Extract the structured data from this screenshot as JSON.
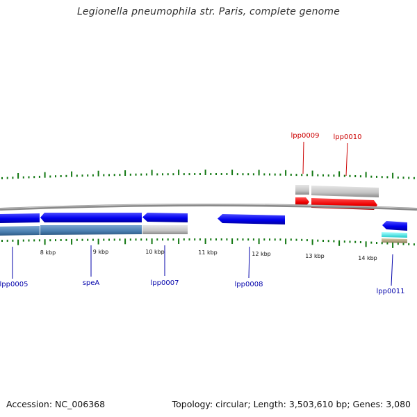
{
  "title": "Legionella pneumophila str. Paris, complete genome",
  "footer": {
    "accession": "Accession: NC_006368",
    "topology": "Topology: circular; Length: 3,503,610 bp; Genes: 3,080"
  },
  "scale_labels": [
    "8 kbp",
    "9 kbp",
    "10 kbp",
    "11 kbp",
    "12 kbp",
    "13 kbp",
    "14 kbp"
  ],
  "genes": [
    {
      "name": "lpp0005",
      "label": "lpp0005",
      "strand": "minus"
    },
    {
      "name": "speA",
      "label": "speA",
      "strand": "minus"
    },
    {
      "name": "lpp0007",
      "label": "lpp0007",
      "strand": "minus"
    },
    {
      "name": "lpp0008",
      "label": "lpp0008",
      "strand": "minus"
    },
    {
      "name": "lpp0009",
      "label": "lpp0009",
      "strand": "plus"
    },
    {
      "name": "lpp0010",
      "label": "lpp0010",
      "strand": "plus"
    },
    {
      "name": "lpp0011",
      "label": "lpp0011",
      "strand": "minus"
    }
  ],
  "colors": {
    "plus_strand_gene": "#ee0000",
    "minus_strand_gene": "#0000ee",
    "plus_label": "#cc0000",
    "minus_label": "#0000aa",
    "backbone": "#808080",
    "tick": "#117711",
    "cds_block": "#4a7fb0",
    "feature_grey": "#c0c0c0",
    "cyan_feature": "#33dddd",
    "tan_feature": "#b0a080"
  }
}
